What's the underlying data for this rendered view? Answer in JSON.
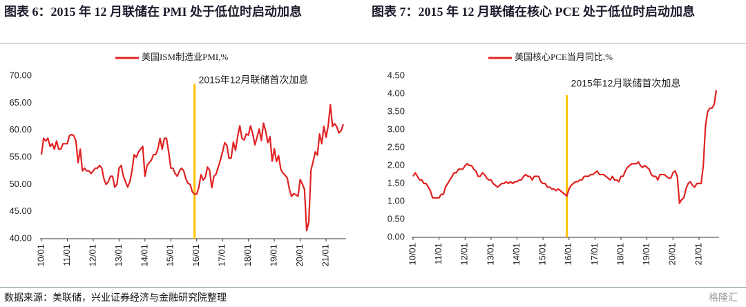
{
  "header": {
    "left_title": "图表 6：2015 年 12 月联储在 PMI 处于低位时启动加息",
    "right_title": "图表 7：2015 年 12 月联储在核心 PCE 处于低位时启动加息"
  },
  "footer": {
    "source": "数据来源：美联储，兴业证券经济与金融研究院整理",
    "watermark": "格隆汇"
  },
  "chart_data": [
    {
      "type": "line",
      "legend": "top",
      "categories": [
        "10/01",
        null,
        null,
        null,
        null,
        null,
        null,
        null,
        null,
        null,
        null,
        null,
        "11/01",
        null,
        null,
        null,
        null,
        null,
        null,
        null,
        null,
        null,
        null,
        null,
        "12/01",
        null,
        null,
        null,
        null,
        null,
        null,
        null,
        null,
        null,
        null,
        null,
        "13/01",
        null,
        null,
        null,
        null,
        null,
        null,
        null,
        null,
        null,
        null,
        null,
        "14/01",
        null,
        null,
        null,
        null,
        null,
        null,
        null,
        null,
        null,
        null,
        null,
        "15/01",
        null,
        null,
        null,
        null,
        null,
        null,
        null,
        null,
        null,
        null,
        null,
        "16/01",
        null,
        null,
        null,
        null,
        null,
        null,
        null,
        null,
        null,
        null,
        null,
        "17/01",
        null,
        null,
        null,
        null,
        null,
        null,
        null,
        null,
        null,
        null,
        null,
        "18/01",
        null,
        null,
        null,
        null,
        null,
        null,
        null,
        null,
        null,
        null,
        null,
        "19/01",
        null,
        null,
        null,
        null,
        null,
        null,
        null,
        null,
        null,
        null,
        null,
        "20/01",
        null,
        null,
        null,
        null,
        null,
        null,
        null,
        null,
        null,
        null,
        null,
        "21/01",
        null,
        null,
        null,
        null,
        null,
        null,
        null,
        null
      ],
      "series": [
        {
          "name": "美国ISM制造业PMI,%",
          "color": "#e02222",
          "values": [
            55.5,
            58.5,
            58,
            58.5,
            57,
            57.5,
            56.5,
            58,
            56.5,
            56.5,
            57.5,
            57.5,
            57.5,
            59,
            59.2,
            59,
            58,
            54,
            56.5,
            52.5,
            53,
            52.5,
            52.5,
            52,
            52.5,
            53,
            53,
            53.5,
            53,
            51,
            50,
            50.5,
            51.5,
            51.5,
            49.5,
            50,
            53,
            53.5,
            51.5,
            50.5,
            49.5,
            50.5,
            52.5,
            55.5,
            55,
            56,
            56.5,
            57,
            51.5,
            53.5,
            54,
            54.5,
            55.5,
            55.5,
            56.5,
            58.5,
            56.5,
            58.5,
            58.5,
            56,
            53,
            53,
            52,
            51.5,
            52.5,
            53,
            52.5,
            51,
            50.2,
            50,
            48.6,
            48.2,
            48.2,
            49.5,
            51.8,
            50.8,
            51.3,
            53.2,
            52.6,
            49.4,
            51.5,
            51.9,
            53.2,
            54.5,
            56,
            57.7,
            57.2,
            54.8,
            54.9,
            57.8,
            56.3,
            58.8,
            60.8,
            58.5,
            58.2,
            59.3,
            59.1,
            60.8,
            59.3,
            57.3,
            58.7,
            60.2,
            58.1,
            61.3,
            59.8,
            57.7,
            58.8,
            54.3,
            56.6,
            54.2,
            55.3,
            52.8,
            52.1,
            51.7,
            51.2,
            49.1,
            47.8,
            48.3,
            48.1,
            47.8,
            50.9,
            50.1,
            49.1,
            41.5,
            43.1,
            52.6,
            54.2,
            56,
            55.4,
            59.3,
            57.5,
            60.7,
            58.7,
            60.8,
            64.7,
            60.7,
            61.2,
            60.6,
            59.5,
            59.9,
            61.1
          ]
        }
      ],
      "ylim": [
        40,
        70
      ],
      "yticks": [
        {
          "value": 40,
          "label": "40.00"
        },
        {
          "value": 45,
          "label": "45.00"
        },
        {
          "value": 50,
          "label": "50.00"
        },
        {
          "value": 55,
          "label": "55.00"
        },
        {
          "value": 60,
          "label": "60.00"
        },
        {
          "value": 65,
          "label": "65.00"
        },
        {
          "value": 70,
          "label": "70.00"
        }
      ],
      "annotation": {
        "text": "2015年12月联储首次加息",
        "x": 71,
        "color": "#ffc000"
      }
    },
    {
      "type": "line",
      "legend": "top",
      "categories": [
        "10/01",
        null,
        null,
        null,
        null,
        null,
        null,
        null,
        null,
        null,
        null,
        null,
        "11/01",
        null,
        null,
        null,
        null,
        null,
        null,
        null,
        null,
        null,
        null,
        null,
        "12/01",
        null,
        null,
        null,
        null,
        null,
        null,
        null,
        null,
        null,
        null,
        null,
        "13/01",
        null,
        null,
        null,
        null,
        null,
        null,
        null,
        null,
        null,
        null,
        null,
        "14/01",
        null,
        null,
        null,
        null,
        null,
        null,
        null,
        null,
        null,
        null,
        null,
        "15/01",
        null,
        null,
        null,
        null,
        null,
        null,
        null,
        null,
        null,
        null,
        null,
        "16/01",
        null,
        null,
        null,
        null,
        null,
        null,
        null,
        null,
        null,
        null,
        null,
        "17/01",
        null,
        null,
        null,
        null,
        null,
        null,
        null,
        null,
        null,
        null,
        null,
        "18/01",
        null,
        null,
        null,
        null,
        null,
        null,
        null,
        null,
        null,
        null,
        null,
        "19/01",
        null,
        null,
        null,
        null,
        null,
        null,
        null,
        null,
        null,
        null,
        null,
        "20/01",
        null,
        null,
        null,
        null,
        null,
        null,
        null,
        null,
        null,
        null,
        null,
        "21/01",
        null,
        null,
        null,
        null,
        null,
        null,
        null,
        null
      ],
      "series": [
        {
          "name": "美国核心PCE当月同比,%",
          "color": "#e02222",
          "values": [
            1.7,
            1.8,
            1.7,
            1.6,
            1.6,
            1.5,
            1.5,
            1.4,
            1.3,
            1.1,
            1.1,
            1.1,
            1.1,
            1.2,
            1.2,
            1.4,
            1.5,
            1.6,
            1.7,
            1.8,
            1.8,
            1.9,
            1.9,
            1.9,
            2.0,
            2.05,
            2.0,
            2.0,
            1.9,
            1.85,
            1.7,
            1.7,
            1.8,
            1.75,
            1.65,
            1.6,
            1.6,
            1.5,
            1.45,
            1.4,
            1.45,
            1.5,
            1.5,
            1.55,
            1.5,
            1.55,
            1.5,
            1.55,
            1.55,
            1.6,
            1.6,
            1.7,
            1.75,
            1.7,
            1.7,
            1.6,
            1.7,
            1.7,
            1.7,
            1.55,
            1.5,
            1.5,
            1.4,
            1.4,
            1.35,
            1.35,
            1.3,
            1.35,
            1.3,
            1.25,
            1.2,
            1.15,
            1.35,
            1.45,
            1.5,
            1.55,
            1.55,
            1.6,
            1.6,
            1.7,
            1.7,
            1.7,
            1.75,
            1.75,
            1.8,
            1.85,
            1.75,
            1.75,
            1.75,
            1.7,
            1.65,
            1.6,
            1.7,
            1.6,
            1.6,
            1.55,
            1.7,
            1.7,
            1.85,
            1.95,
            2.0,
            2.05,
            2.05,
            2.05,
            2.1,
            2.0,
            1.95,
            2.0,
            1.95,
            1.9,
            1.75,
            1.7,
            1.7,
            1.6,
            1.75,
            1.75,
            1.75,
            1.7,
            1.65,
            1.65,
            1.8,
            1.85,
            1.7,
            0.95,
            1.05,
            1.1,
            1.35,
            1.5,
            1.55,
            1.45,
            1.4,
            1.5,
            1.5,
            1.5,
            2.0,
            3.1,
            3.5,
            3.6,
            3.6,
            3.7,
            4.1
          ]
        }
      ],
      "ylim": [
        0,
        4.5
      ],
      "yticks": [
        {
          "value": 0,
          "label": "0.00"
        },
        {
          "value": 0.5,
          "label": "0.50"
        },
        {
          "value": 1,
          "label": "1.00"
        },
        {
          "value": 1.5,
          "label": "1.50"
        },
        {
          "value": 2,
          "label": "2.00"
        },
        {
          "value": 2.5,
          "label": "2.50"
        },
        {
          "value": 3,
          "label": "3.00"
        },
        {
          "value": 3.5,
          "label": "3.50"
        },
        {
          "value": 4,
          "label": "4.00"
        },
        {
          "value": 4.5,
          "label": "4.50"
        }
      ],
      "annotation": {
        "text": "2015年12月联储首次加息",
        "x": 71,
        "color": "#ffc000"
      }
    }
  ]
}
